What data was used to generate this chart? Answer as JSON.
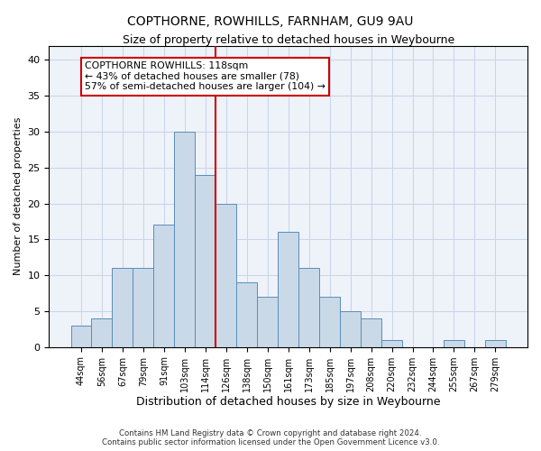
{
  "title": "COPTHORNE, ROWHILLS, FARNHAM, GU9 9AU",
  "subtitle": "Size of property relative to detached houses in Weybourne",
  "xlabel": "Distribution of detached houses by size in Weybourne",
  "ylabel": "Number of detached properties",
  "bar_labels": [
    "44sqm",
    "56sqm",
    "67sqm",
    "79sqm",
    "91sqm",
    "103sqm",
    "114sqm",
    "126sqm",
    "138sqm",
    "150sqm",
    "161sqm",
    "173sqm",
    "185sqm",
    "197sqm",
    "208sqm",
    "220sqm",
    "232sqm",
    "244sqm",
    "255sqm",
    "267sqm",
    "279sqm"
  ],
  "bar_values": [
    3,
    4,
    11,
    11,
    17,
    30,
    24,
    20,
    9,
    7,
    16,
    11,
    7,
    5,
    4,
    1,
    0,
    0,
    1,
    0,
    1
  ],
  "bar_color": "#c9d9e8",
  "bar_edgecolor": "#5b8db8",
  "ylim": [
    0,
    42
  ],
  "yticks": [
    0,
    5,
    10,
    15,
    20,
    25,
    30,
    35,
    40
  ],
  "vline_x": 6.5,
  "vline_color": "#cc0000",
  "annotation_text": "COPTHORNE ROWHILLS: 118sqm\n← 43% of detached houses are smaller (78)\n57% of semi-detached houses are larger (104) →",
  "footer_line1": "Contains HM Land Registry data © Crown copyright and database right 2024.",
  "footer_line2": "Contains public sector information licensed under the Open Government Licence v3.0.",
  "background_color": "#eef2f9",
  "grid_color": "#c8d4e8"
}
